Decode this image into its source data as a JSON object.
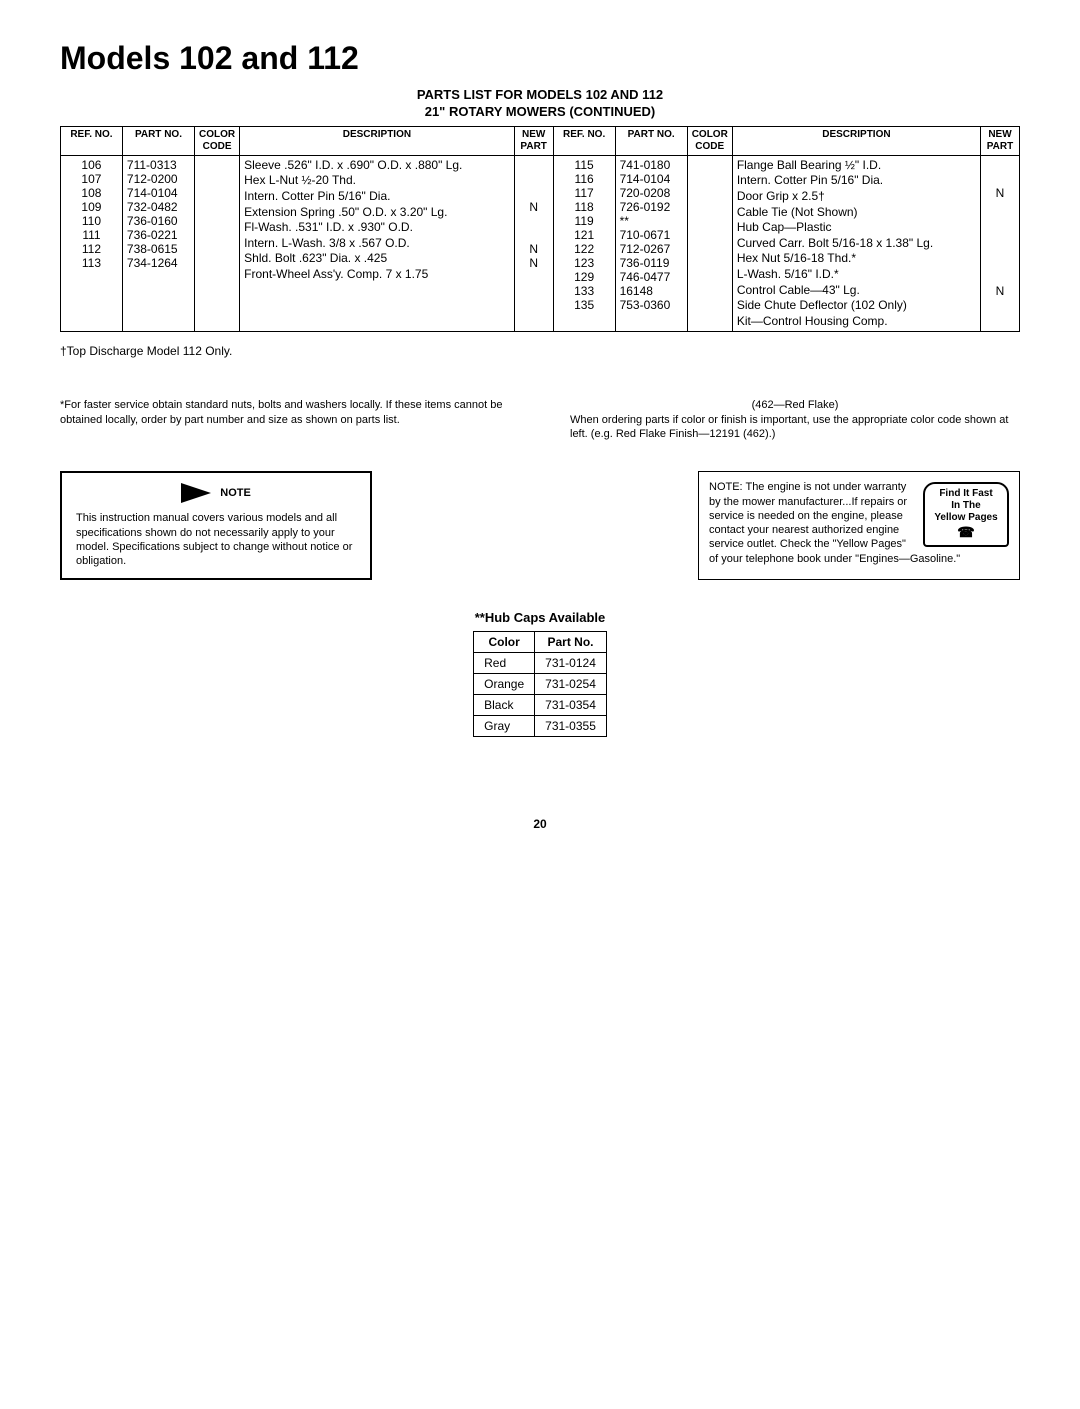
{
  "title": "Models 102 and 112",
  "subtitle_line1": "PARTS LIST FOR MODELS 102 AND 112",
  "subtitle_line2": "21\" ROTARY MOWERS (CONTINUED)",
  "headers": {
    "ref_no": "REF. NO.",
    "part_no": "PART NO.",
    "color_code": "COLOR CODE",
    "description": "DESCRIPTION",
    "new_part": "NEW PART"
  },
  "left_rows": [
    {
      "ref": "106",
      "part": "711-0313",
      "desc": "Sleeve .526\" I.D. x .690\" O.D. x .880\" Lg.",
      "new": ""
    },
    {
      "ref": "107",
      "part": "712-0200",
      "desc": "Hex L-Nut ½-20 Thd.",
      "new": ""
    },
    {
      "ref": "108",
      "part": "714-0104",
      "desc": "Intern. Cotter Pin 5/16\" Dia.",
      "new": ""
    },
    {
      "ref": "109",
      "part": "732-0482",
      "desc": "Extension Spring .50\" O.D. x 3.20\" Lg.",
      "new": "N"
    },
    {
      "ref": "110",
      "part": "736-0160",
      "desc": "Fl-Wash. .531\" I.D. x .930\" O.D.",
      "new": ""
    },
    {
      "ref": "111",
      "part": "736-0221",
      "desc": "Intern. L-Wash. 3/8 x .567 O.D.",
      "new": ""
    },
    {
      "ref": "112",
      "part": "738-0615",
      "desc": "Shld. Bolt .623\" Dia. x .425",
      "new": "N"
    },
    {
      "ref": "113",
      "part": "734-1264",
      "desc": "Front-Wheel Ass'y. Comp. 7 x 1.75",
      "new": "N"
    }
  ],
  "right_rows": [
    {
      "ref": "115",
      "part": "741-0180",
      "desc": "Flange Ball Bearing ½\" I.D.",
      "new": ""
    },
    {
      "ref": "116",
      "part": "714-0104",
      "desc": "Intern. Cotter Pin 5/16\" Dia.",
      "new": ""
    },
    {
      "ref": "117",
      "part": "720-0208",
      "desc": "Door Grip x 2.5†",
      "new": "N"
    },
    {
      "ref": "118",
      "part": "726-0192",
      "desc": "Cable Tie (Not Shown)",
      "new": ""
    },
    {
      "ref": "119",
      "part": "**",
      "desc": "Hub Cap—Plastic",
      "new": ""
    },
    {
      "ref": "121",
      "part": "710-0671",
      "desc": "Curved Carr. Bolt 5/16-18 x 1.38\" Lg.",
      "new": ""
    },
    {
      "ref": "122",
      "part": "712-0267",
      "desc": "Hex Nut 5/16-18 Thd.*",
      "new": ""
    },
    {
      "ref": "123",
      "part": "736-0119",
      "desc": "L-Wash. 5/16\" I.D.*",
      "new": ""
    },
    {
      "ref": "129",
      "part": "746-0477",
      "desc": "Control Cable—43\" Lg.",
      "new": ""
    },
    {
      "ref": "133",
      "part": "16148",
      "desc": "Side Chute Deflector (102 Only)",
      "new": "N"
    },
    {
      "ref": "135",
      "part": "753-0360",
      "desc": "Kit—Control Housing Comp.",
      "new": ""
    }
  ],
  "top_discharge_note": "†Top Discharge Model 112 Only.",
  "faster_service": "*For faster service obtain standard nuts, bolts and washers locally. If these items cannot be obtained locally, order by part number and size as shown on parts list.",
  "red_flake": "(462—Red Flake)",
  "ordering_note": "When ordering parts if color or finish is important, use the appropriate color code shown at left. (e.g. Red Flake Finish—12191 (462).)",
  "note_label": "NOTE",
  "note_text": "This instruction manual covers various models and all specifications shown do not necessarily apply to your model. Specifications subject to change without notice or obligation.",
  "engine_note": "NOTE: The engine is not under warranty by the mower manufacturer...If repairs or service is needed on the engine, please contact your nearest authorized engine service outlet. Check the \"Yellow Pages\" of your telephone book under \"Engines—Gasoline.\"",
  "yellow_pages": {
    "line1": "Find It Fast",
    "line2": "In The",
    "line3": "Yellow Pages"
  },
  "hub_caps_title": "**Hub Caps Available",
  "hub_caps_headers": {
    "color": "Color",
    "part": "Part No."
  },
  "hub_caps": [
    {
      "color": "Red",
      "part": "731-0124"
    },
    {
      "color": "Orange",
      "part": "731-0254"
    },
    {
      "color": "Black",
      "part": "731-0354"
    },
    {
      "color": "Gray",
      "part": "731-0355"
    }
  ],
  "page_number": "20"
}
